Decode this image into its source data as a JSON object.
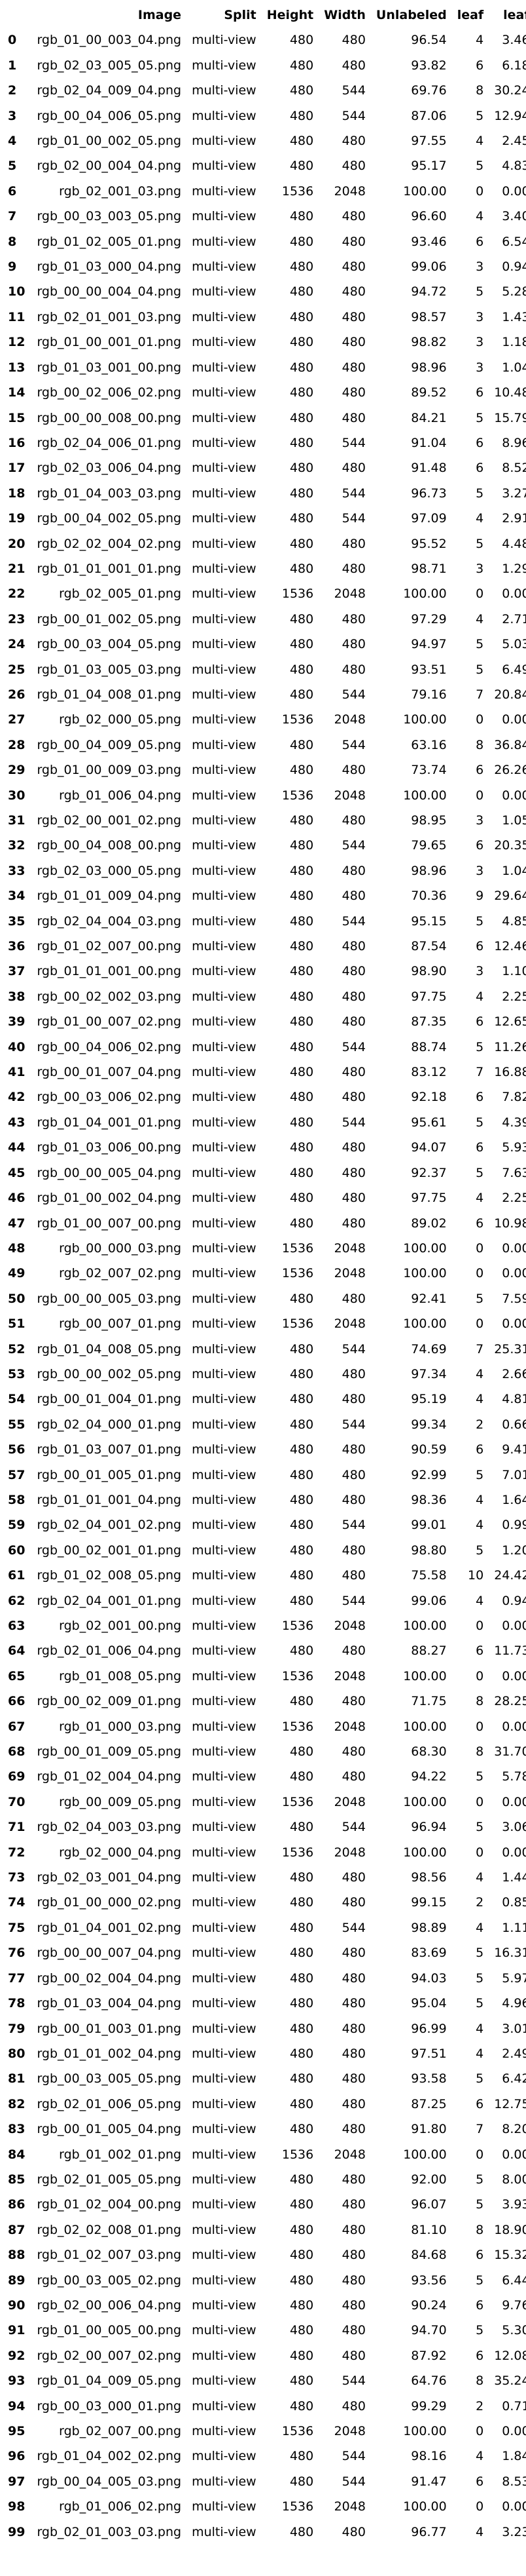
{
  "columns": [
    "",
    "Image",
    "Split",
    "Height",
    "Width",
    "Unlabeled",
    "leaf",
    "leaf"
  ],
  "rows": [
    [
      "0",
      "rgb_01_00_003_04.png",
      "multi-view",
      "480",
      "480",
      "96.54",
      "4",
      "3.46"
    ],
    [
      "1",
      "rgb_02_03_005_05.png",
      "multi-view",
      "480",
      "480",
      "93.82",
      "6",
      "6.18"
    ],
    [
      "2",
      "rgb_02_04_009_04.png",
      "multi-view",
      "480",
      "544",
      "69.76",
      "8",
      "30.24"
    ],
    [
      "3",
      "rgb_00_04_006_05.png",
      "multi-view",
      "480",
      "544",
      "87.06",
      "5",
      "12.94"
    ],
    [
      "4",
      "rgb_01_00_002_05.png",
      "multi-view",
      "480",
      "480",
      "97.55",
      "4",
      "2.45"
    ],
    [
      "5",
      "rgb_02_00_004_04.png",
      "multi-view",
      "480",
      "480",
      "95.17",
      "5",
      "4.83"
    ],
    [
      "6",
      "rgb_02_001_03.png",
      "multi-view",
      "1536",
      "2048",
      "100.00",
      "0",
      "0.00"
    ],
    [
      "7",
      "rgb_00_03_003_05.png",
      "multi-view",
      "480",
      "480",
      "96.60",
      "4",
      "3.40"
    ],
    [
      "8",
      "rgb_01_02_005_01.png",
      "multi-view",
      "480",
      "480",
      "93.46",
      "6",
      "6.54"
    ],
    [
      "9",
      "rgb_01_03_000_04.png",
      "multi-view",
      "480",
      "480",
      "99.06",
      "3",
      "0.94"
    ],
    [
      "10",
      "rgb_00_00_004_04.png",
      "multi-view",
      "480",
      "480",
      "94.72",
      "5",
      "5.28"
    ],
    [
      "11",
      "rgb_02_01_001_03.png",
      "multi-view",
      "480",
      "480",
      "98.57",
      "3",
      "1.43"
    ],
    [
      "12",
      "rgb_01_00_001_01.png",
      "multi-view",
      "480",
      "480",
      "98.82",
      "3",
      "1.18"
    ],
    [
      "13",
      "rgb_01_03_001_00.png",
      "multi-view",
      "480",
      "480",
      "98.96",
      "3",
      "1.04"
    ],
    [
      "14",
      "rgb_00_02_006_02.png",
      "multi-view",
      "480",
      "480",
      "89.52",
      "6",
      "10.48"
    ],
    [
      "15",
      "rgb_00_00_008_00.png",
      "multi-view",
      "480",
      "480",
      "84.21",
      "5",
      "15.79"
    ],
    [
      "16",
      "rgb_02_04_006_01.png",
      "multi-view",
      "480",
      "544",
      "91.04",
      "6",
      "8.96"
    ],
    [
      "17",
      "rgb_02_03_006_04.png",
      "multi-view",
      "480",
      "480",
      "91.48",
      "6",
      "8.52"
    ],
    [
      "18",
      "rgb_01_04_003_03.png",
      "multi-view",
      "480",
      "544",
      "96.73",
      "5",
      "3.27"
    ],
    [
      "19",
      "rgb_00_04_002_05.png",
      "multi-view",
      "480",
      "544",
      "97.09",
      "4",
      "2.91"
    ],
    [
      "20",
      "rgb_02_02_004_02.png",
      "multi-view",
      "480",
      "480",
      "95.52",
      "5",
      "4.48"
    ],
    [
      "21",
      "rgb_01_01_001_01.png",
      "multi-view",
      "480",
      "480",
      "98.71",
      "3",
      "1.29"
    ],
    [
      "22",
      "rgb_02_005_01.png",
      "multi-view",
      "1536",
      "2048",
      "100.00",
      "0",
      "0.00"
    ],
    [
      "23",
      "rgb_00_01_002_05.png",
      "multi-view",
      "480",
      "480",
      "97.29",
      "4",
      "2.71"
    ],
    [
      "24",
      "rgb_00_03_004_05.png",
      "multi-view",
      "480",
      "480",
      "94.97",
      "5",
      "5.03"
    ],
    [
      "25",
      "rgb_01_03_005_03.png",
      "multi-view",
      "480",
      "480",
      "93.51",
      "5",
      "6.49"
    ],
    [
      "26",
      "rgb_01_04_008_01.png",
      "multi-view",
      "480",
      "544",
      "79.16",
      "7",
      "20.84"
    ],
    [
      "27",
      "rgb_02_000_05.png",
      "multi-view",
      "1536",
      "2048",
      "100.00",
      "0",
      "0.00"
    ],
    [
      "28",
      "rgb_00_04_009_05.png",
      "multi-view",
      "480",
      "544",
      "63.16",
      "8",
      "36.84"
    ],
    [
      "29",
      "rgb_01_00_009_03.png",
      "multi-view",
      "480",
      "480",
      "73.74",
      "6",
      "26.26"
    ],
    [
      "30",
      "rgb_01_006_04.png",
      "multi-view",
      "1536",
      "2048",
      "100.00",
      "0",
      "0.00"
    ],
    [
      "31",
      "rgb_02_00_001_02.png",
      "multi-view",
      "480",
      "480",
      "98.95",
      "3",
      "1.05"
    ],
    [
      "32",
      "rgb_00_04_008_00.png",
      "multi-view",
      "480",
      "544",
      "79.65",
      "6",
      "20.35"
    ],
    [
      "33",
      "rgb_02_03_000_05.png",
      "multi-view",
      "480",
      "480",
      "98.96",
      "3",
      "1.04"
    ],
    [
      "34",
      "rgb_01_01_009_04.png",
      "multi-view",
      "480",
      "480",
      "70.36",
      "9",
      "29.64"
    ],
    [
      "35",
      "rgb_02_04_004_03.png",
      "multi-view",
      "480",
      "544",
      "95.15",
      "5",
      "4.85"
    ],
    [
      "36",
      "rgb_01_02_007_00.png",
      "multi-view",
      "480",
      "480",
      "87.54",
      "6",
      "12.46"
    ],
    [
      "37",
      "rgb_01_01_001_00.png",
      "multi-view",
      "480",
      "480",
      "98.90",
      "3",
      "1.10"
    ],
    [
      "38",
      "rgb_00_02_002_03.png",
      "multi-view",
      "480",
      "480",
      "97.75",
      "4",
      "2.25"
    ],
    [
      "39",
      "rgb_01_00_007_02.png",
      "multi-view",
      "480",
      "480",
      "87.35",
      "6",
      "12.65"
    ],
    [
      "40",
      "rgb_00_04_006_02.png",
      "multi-view",
      "480",
      "544",
      "88.74",
      "5",
      "11.26"
    ],
    [
      "41",
      "rgb_00_01_007_04.png",
      "multi-view",
      "480",
      "480",
      "83.12",
      "7",
      "16.88"
    ],
    [
      "42",
      "rgb_00_03_006_02.png",
      "multi-view",
      "480",
      "480",
      "92.18",
      "6",
      "7.82"
    ],
    [
      "43",
      "rgb_01_04_001_01.png",
      "multi-view",
      "480",
      "544",
      "95.61",
      "5",
      "4.39"
    ],
    [
      "44",
      "rgb_01_03_006_00.png",
      "multi-view",
      "480",
      "480",
      "94.07",
      "6",
      "5.93"
    ],
    [
      "45",
      "rgb_00_00_005_04.png",
      "multi-view",
      "480",
      "480",
      "92.37",
      "5",
      "7.63"
    ],
    [
      "46",
      "rgb_01_00_002_04.png",
      "multi-view",
      "480",
      "480",
      "97.75",
      "4",
      "2.25"
    ],
    [
      "47",
      "rgb_01_00_007_00.png",
      "multi-view",
      "480",
      "480",
      "89.02",
      "6",
      "10.98"
    ],
    [
      "48",
      "rgb_00_000_03.png",
      "multi-view",
      "1536",
      "2048",
      "100.00",
      "0",
      "0.00"
    ],
    [
      "49",
      "rgb_02_007_02.png",
      "multi-view",
      "1536",
      "2048",
      "100.00",
      "0",
      "0.00"
    ],
    [
      "50",
      "rgb_00_00_005_03.png",
      "multi-view",
      "480",
      "480",
      "92.41",
      "5",
      "7.59"
    ],
    [
      "51",
      "rgb_00_007_01.png",
      "multi-view",
      "1536",
      "2048",
      "100.00",
      "0",
      "0.00"
    ],
    [
      "52",
      "rgb_01_04_008_05.png",
      "multi-view",
      "480",
      "544",
      "74.69",
      "7",
      "25.31"
    ],
    [
      "53",
      "rgb_00_00_002_05.png",
      "multi-view",
      "480",
      "480",
      "97.34",
      "4",
      "2.66"
    ],
    [
      "54",
      "rgb_00_01_004_01.png",
      "multi-view",
      "480",
      "480",
      "95.19",
      "4",
      "4.81"
    ],
    [
      "55",
      "rgb_02_04_000_01.png",
      "multi-view",
      "480",
      "544",
      "99.34",
      "2",
      "0.66"
    ],
    [
      "56",
      "rgb_01_03_007_01.png",
      "multi-view",
      "480",
      "480",
      "90.59",
      "6",
      "9.41"
    ],
    [
      "57",
      "rgb_00_01_005_01.png",
      "multi-view",
      "480",
      "480",
      "92.99",
      "5",
      "7.01"
    ],
    [
      "58",
      "rgb_01_01_001_04.png",
      "multi-view",
      "480",
      "480",
      "98.36",
      "4",
      "1.64"
    ],
    [
      "59",
      "rgb_02_04_001_02.png",
      "multi-view",
      "480",
      "544",
      "99.01",
      "4",
      "0.99"
    ],
    [
      "60",
      "rgb_00_02_001_01.png",
      "multi-view",
      "480",
      "480",
      "98.80",
      "5",
      "1.20"
    ],
    [
      "61",
      "rgb_01_02_008_05.png",
      "multi-view",
      "480",
      "480",
      "75.58",
      "10",
      "24.42"
    ],
    [
      "62",
      "rgb_02_04_001_01.png",
      "multi-view",
      "480",
      "544",
      "99.06",
      "4",
      "0.94"
    ],
    [
      "63",
      "rgb_02_001_00.png",
      "multi-view",
      "1536",
      "2048",
      "100.00",
      "0",
      "0.00"
    ],
    [
      "64",
      "rgb_02_01_006_04.png",
      "multi-view",
      "480",
      "480",
      "88.27",
      "6",
      "11.73"
    ],
    [
      "65",
      "rgb_01_008_05.png",
      "multi-view",
      "1536",
      "2048",
      "100.00",
      "0",
      "0.00"
    ],
    [
      "66",
      "rgb_00_02_009_01.png",
      "multi-view",
      "480",
      "480",
      "71.75",
      "8",
      "28.25"
    ],
    [
      "67",
      "rgb_01_000_03.png",
      "multi-view",
      "1536",
      "2048",
      "100.00",
      "0",
      "0.00"
    ],
    [
      "68",
      "rgb_00_01_009_05.png",
      "multi-view",
      "480",
      "480",
      "68.30",
      "8",
      "31.70"
    ],
    [
      "69",
      "rgb_01_02_004_04.png",
      "multi-view",
      "480",
      "480",
      "94.22",
      "5",
      "5.78"
    ],
    [
      "70",
      "rgb_00_009_05.png",
      "multi-view",
      "1536",
      "2048",
      "100.00",
      "0",
      "0.00"
    ],
    [
      "71",
      "rgb_02_04_003_03.png",
      "multi-view",
      "480",
      "544",
      "96.94",
      "5",
      "3.06"
    ],
    [
      "72",
      "rgb_02_000_04.png",
      "multi-view",
      "1536",
      "2048",
      "100.00",
      "0",
      "0.00"
    ],
    [
      "73",
      "rgb_02_03_001_04.png",
      "multi-view",
      "480",
      "480",
      "98.56",
      "4",
      "1.44"
    ],
    [
      "74",
      "rgb_01_00_000_02.png",
      "multi-view",
      "480",
      "480",
      "99.15",
      "2",
      "0.85"
    ],
    [
      "75",
      "rgb_01_04_001_02.png",
      "multi-view",
      "480",
      "544",
      "98.89",
      "4",
      "1.11"
    ],
    [
      "76",
      "rgb_00_00_007_04.png",
      "multi-view",
      "480",
      "480",
      "83.69",
      "5",
      "16.31"
    ],
    [
      "77",
      "rgb_00_02_004_04.png",
      "multi-view",
      "480",
      "480",
      "94.03",
      "5",
      "5.97"
    ],
    [
      "78",
      "rgb_01_03_004_04.png",
      "multi-view",
      "480",
      "480",
      "95.04",
      "5",
      "4.96"
    ],
    [
      "79",
      "rgb_00_01_003_01.png",
      "multi-view",
      "480",
      "480",
      "96.99",
      "4",
      "3.01"
    ],
    [
      "80",
      "rgb_01_01_002_04.png",
      "multi-view",
      "480",
      "480",
      "97.51",
      "4",
      "2.49"
    ],
    [
      "81",
      "rgb_00_03_005_05.png",
      "multi-view",
      "480",
      "480",
      "93.58",
      "5",
      "6.42"
    ],
    [
      "82",
      "rgb_02_01_006_05.png",
      "multi-view",
      "480",
      "480",
      "87.25",
      "6",
      "12.75"
    ],
    [
      "83",
      "rgb_00_01_005_04.png",
      "multi-view",
      "480",
      "480",
      "91.80",
      "7",
      "8.20"
    ],
    [
      "84",
      "rgb_01_002_01.png",
      "multi-view",
      "1536",
      "2048",
      "100.00",
      "0",
      "0.00"
    ],
    [
      "85",
      "rgb_02_01_005_05.png",
      "multi-view",
      "480",
      "480",
      "92.00",
      "5",
      "8.00"
    ],
    [
      "86",
      "rgb_01_02_004_00.png",
      "multi-view",
      "480",
      "480",
      "96.07",
      "5",
      "3.93"
    ],
    [
      "87",
      "rgb_02_02_008_01.png",
      "multi-view",
      "480",
      "480",
      "81.10",
      "8",
      "18.90"
    ],
    [
      "88",
      "rgb_01_02_007_03.png",
      "multi-view",
      "480",
      "480",
      "84.68",
      "6",
      "15.32"
    ],
    [
      "89",
      "rgb_00_03_005_02.png",
      "multi-view",
      "480",
      "480",
      "93.56",
      "5",
      "6.44"
    ],
    [
      "90",
      "rgb_02_00_006_04.png",
      "multi-view",
      "480",
      "480",
      "90.24",
      "6",
      "9.76"
    ],
    [
      "91",
      "rgb_01_00_005_00.png",
      "multi-view",
      "480",
      "480",
      "94.70",
      "5",
      "5.30"
    ],
    [
      "92",
      "rgb_02_00_007_02.png",
      "multi-view",
      "480",
      "480",
      "87.92",
      "6",
      "12.08"
    ],
    [
      "93",
      "rgb_01_04_009_05.png",
      "multi-view",
      "480",
      "544",
      "64.76",
      "8",
      "35.24"
    ],
    [
      "94",
      "rgb_00_03_000_01.png",
      "multi-view",
      "480",
      "480",
      "99.29",
      "2",
      "0.71"
    ],
    [
      "95",
      "rgb_02_007_00.png",
      "multi-view",
      "1536",
      "2048",
      "100.00",
      "0",
      "0.00"
    ],
    [
      "96",
      "rgb_01_04_002_02.png",
      "multi-view",
      "480",
      "544",
      "98.16",
      "4",
      "1.84"
    ],
    [
      "97",
      "rgb_00_04_005_03.png",
      "multi-view",
      "480",
      "544",
      "91.47",
      "6",
      "8.53"
    ],
    [
      "98",
      "rgb_01_006_02.png",
      "multi-view",
      "1536",
      "2048",
      "100.00",
      "0",
      "0.00"
    ],
    [
      "99",
      "rgb_02_01_003_03.png",
      "multi-view",
      "480",
      "480",
      "96.77",
      "4",
      "3.23"
    ]
  ]
}
